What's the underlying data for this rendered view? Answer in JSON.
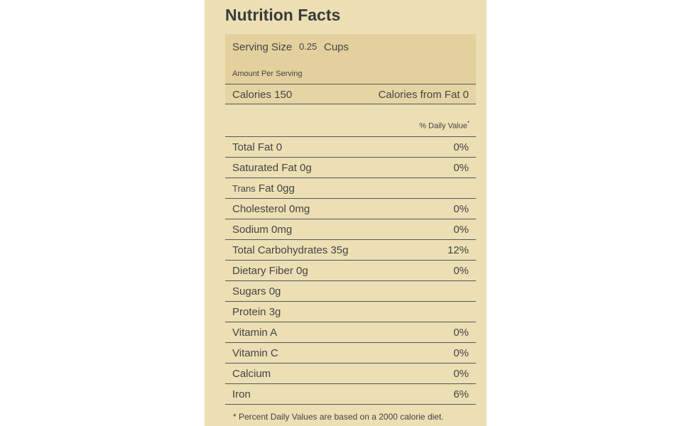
{
  "title": "Nutrition Facts",
  "serving": {
    "label": "Serving Size",
    "amount": "0.25",
    "unit": "Cups"
  },
  "amount_per_serving": "Amount Per Serving",
  "calories": {
    "label": "Calories 150",
    "from_fat": "Calories from Fat 0"
  },
  "daily_value_header": {
    "text": "% Daily Value",
    "mark": "*"
  },
  "rows": [
    {
      "label": "Total Fat 0",
      "dv": "0%"
    },
    {
      "label": "Saturated Fat 0g",
      "dv": "0%"
    },
    {
      "prefix": "Trans",
      "label": "Fat 0gg"
    },
    {
      "label": "Cholesterol 0mg",
      "dv": "0%"
    },
    {
      "label": "Sodium 0mg",
      "dv": "0%"
    },
    {
      "label": "Total Carbohydrates 35g",
      "dv": "12%"
    },
    {
      "label": "Dietary Fiber 0g",
      "dv": "0%"
    },
    {
      "label": "Sugars 0g"
    },
    {
      "label": "Protein 3g"
    },
    {
      "label": "Vitamin A",
      "dv": "0%"
    },
    {
      "label": "Vitamin C",
      "dv": "0%"
    },
    {
      "label": "Calcium",
      "dv": "0%"
    },
    {
      "label": "Iron",
      "dv": "6%"
    }
  ],
  "footnote": "* Percent Daily Values are based on a 2000 calorie diet."
}
